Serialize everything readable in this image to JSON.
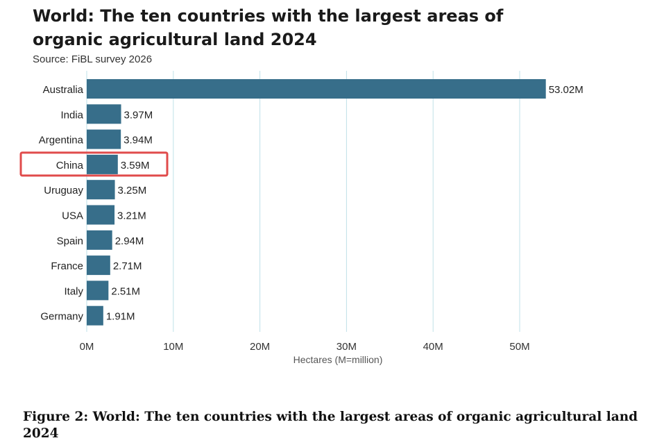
{
  "chart_data": {
    "type": "bar",
    "orientation": "horizontal",
    "title": "World: The ten countries with the largest areas of organic agricultural land 2024",
    "subtitle": "Source: FiBL survey 2026",
    "xlabel": "Hectares (M=million)",
    "ylabel": "",
    "categories": [
      "Australia",
      "India",
      "Argentina",
      "China",
      "Uruguay",
      "USA",
      "Spain",
      "France",
      "Italy",
      "Germany"
    ],
    "values": [
      53.02,
      3.97,
      3.94,
      3.59,
      3.25,
      3.21,
      2.94,
      2.71,
      2.51,
      1.91
    ],
    "value_labels": [
      "53.02M",
      "3.97M",
      "3.94M",
      "3.59M",
      "3.25M",
      "3.21M",
      "2.94M",
      "2.71M",
      "2.51M",
      "1.91M"
    ],
    "xlim": [
      0,
      55
    ],
    "xticks": [
      0,
      10,
      20,
      30,
      40,
      50
    ],
    "xtick_labels": [
      "0M",
      "10M",
      "20M",
      "30M",
      "40M",
      "50M"
    ],
    "grid": "vertical",
    "highlight_category": "China",
    "colors": {
      "bar": "#376e8a",
      "grid": "#bfe0e8",
      "highlight": "#e04b4b"
    }
  },
  "caption": "Figure 2: World: The ten countries with the largest areas of organic agricultural land 2024"
}
